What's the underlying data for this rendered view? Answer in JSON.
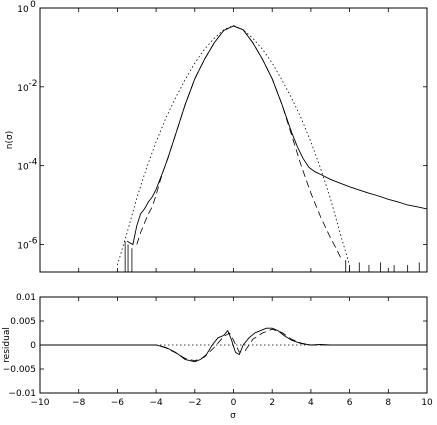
{
  "chart_data": [
    {
      "type": "line",
      "panel": "top",
      "ylabel": "n(σ)",
      "yscale": "log",
      "xlim": [
        -10,
        10
      ],
      "ylim": [
        2e-07,
        1
      ],
      "xticks": [
        -10,
        -8,
        -6,
        -4,
        -2,
        0,
        2,
        4,
        6,
        8,
        10
      ],
      "yticks": [
        {
          "value": 1e-06,
          "label": "10",
          "exp": "-6"
        },
        {
          "value": 0.0001,
          "label": "10",
          "exp": "-4"
        },
        {
          "value": 0.01,
          "label": "10",
          "exp": "-2"
        },
        {
          "value": 1,
          "label": "10",
          "exp": "0"
        }
      ],
      "grid": false,
      "series": [
        {
          "style": "solid",
          "x": [
            -5.5,
            -5.2,
            -5.0,
            -4.8,
            -4.6,
            -4.4,
            -4.2,
            -4.0,
            -3.8,
            -3.6,
            -3.4,
            -3.0,
            -2.5,
            -2.0,
            -1.5,
            -1.0,
            -0.5,
            0.0,
            0.5,
            1.0,
            1.5,
            2.0,
            2.5,
            3.0,
            3.3,
            3.6,
            3.9,
            4.2,
            4.5,
            5.0,
            5.5,
            6.0,
            6.5,
            7.0,
            7.5,
            8.0,
            8.5,
            9.0,
            9.5,
            10.0
          ],
          "y": [
            1.2e-06,
            1e-06,
            3e-06,
            6e-06,
            8e-06,
            1.2e-05,
            1.6e-05,
            2.5e-05,
            4.5e-05,
            8e-05,
            0.00015,
            0.0006,
            0.0035,
            0.016,
            0.05,
            0.13,
            0.27,
            0.35,
            0.28,
            0.13,
            0.05,
            0.016,
            0.0036,
            0.0007,
            0.0003,
            0.00015,
            9e-05,
            7e-05,
            6e-05,
            4.5e-05,
            3.6e-05,
            2.9e-05,
            2.4e-05,
            2e-05,
            1.7e-05,
            1.4e-05,
            1.2e-05,
            1e-05,
            9e-06,
            8e-06
          ]
        },
        {
          "style": "dashed",
          "x": [
            -5.0,
            -4.8,
            -4.6,
            -4.4,
            -4.2,
            -4.0,
            -3.8,
            -3.6,
            -3.4,
            -3.0,
            -2.5,
            -2.0,
            -1.5,
            -1.0,
            -0.5,
            0.0,
            0.5,
            1.0,
            1.5,
            2.0,
            2.5,
            3.0,
            3.5,
            4.0,
            4.5,
            5.0,
            5.3,
            5.6
          ],
          "y": [
            1e-06,
            2e-06,
            3.5e-06,
            6e-06,
            9e-06,
            1.8e-05,
            4e-05,
            8e-05,
            0.00015,
            0.0006,
            0.0035,
            0.016,
            0.05,
            0.13,
            0.27,
            0.35,
            0.28,
            0.13,
            0.05,
            0.016,
            0.0036,
            0.0006,
            0.0001,
            2e-05,
            5e-06,
            1.5e-06,
            8e-07,
            4e-07
          ]
        },
        {
          "style": "dotted",
          "x": [
            -6.0,
            -5.5,
            -5.0,
            -4.5,
            -4.0,
            -3.5,
            -3.0,
            -2.5,
            -2.0,
            -1.5,
            -1.0,
            -0.5,
            0.0,
            0.5,
            1.0,
            1.5,
            2.0,
            2.5,
            3.0,
            3.5,
            4.0,
            4.5,
            5.0,
            5.5,
            6.0
          ],
          "y": [
            3e-07,
            2e-06,
            1.5e-05,
            8.5e-05,
            0.0004,
            0.0016,
            0.0052,
            0.015,
            0.04,
            0.09,
            0.17,
            0.28,
            0.36,
            0.28,
            0.17,
            0.09,
            0.04,
            0.015,
            0.0052,
            0.0016,
            0.0004,
            8.5e-05,
            1.5e-05,
            2e-06,
            3e-07
          ]
        }
      ],
      "spikes": [
        {
          "x": -5.6,
          "top": 1.2e-06
        },
        {
          "x": -5.45,
          "top": 1e-06
        },
        {
          "x": -5.25,
          "top": 8e-07
        },
        {
          "x": 5.8,
          "top": 4e-07
        },
        {
          "x": 6.0,
          "top": 3e-07
        },
        {
          "x": 6.5,
          "top": 3.5e-07
        },
        {
          "x": 7.0,
          "top": 3e-07
        },
        {
          "x": 7.6,
          "top": 3.5e-07
        },
        {
          "x": 8.3,
          "top": 3e-07
        },
        {
          "x": 9.0,
          "top": 3e-07
        },
        {
          "x": 9.6,
          "top": 3.5e-07
        }
      ]
    },
    {
      "type": "line",
      "panel": "bottom",
      "xlabel": "σ",
      "ylabel": "residual",
      "xlim": [
        -10,
        10
      ],
      "ylim": [
        -0.01,
        0.01
      ],
      "xticks": [
        -10,
        -8,
        -6,
        -4,
        -2,
        0,
        2,
        4,
        6,
        8,
        10
      ],
      "yticks": [
        -0.01,
        -0.005,
        0,
        0.005,
        0.01
      ],
      "ytick_labels": [
        "−0.01",
        "−0.005",
        "0",
        "0.005",
        "0.01"
      ],
      "xtick_labels": [
        "−10",
        "−8",
        "−6",
        "−4",
        "−2",
        "0",
        "2",
        "4",
        "6",
        "8",
        "10"
      ],
      "grid": false,
      "series": [
        {
          "style": "solid",
          "x": [
            -10,
            -4.0,
            -3.5,
            -3.0,
            -2.5,
            -2.0,
            -1.7,
            -1.4,
            -1.1,
            -0.8,
            -0.5,
            -0.3,
            -0.1,
            0.1,
            0.3,
            0.5,
            0.8,
            1.1,
            1.4,
            1.7,
            2.0,
            2.3,
            2.6,
            3.0,
            3.5,
            4.0,
            4.5,
            5.0,
            10
          ],
          "y": [
            0,
            0,
            -0.0005,
            -0.0015,
            -0.003,
            -0.0035,
            -0.003,
            -0.002,
            0.0,
            0.0015,
            0.002,
            0.003,
            0.001,
            -0.0015,
            -0.002,
            0.0,
            0.0015,
            0.0025,
            0.003,
            0.0035,
            0.0035,
            0.003,
            0.002,
            0.001,
            0.0003,
            0.0,
            0.0001,
            0,
            0
          ]
        },
        {
          "style": "dashed",
          "x": [
            -10,
            -4.0,
            -3.5,
            -3.0,
            -2.5,
            -2.0,
            -1.5,
            -1.0,
            -0.5,
            -0.2,
            0.0,
            0.3,
            0.6,
            1.0,
            1.5,
            2.0,
            2.5,
            3.0,
            3.5,
            4.0,
            10
          ],
          "y": [
            0,
            0,
            -0.0006,
            -0.0016,
            -0.0028,
            -0.0033,
            -0.0025,
            -0.0005,
            0.0018,
            0.0025,
            0.001,
            -0.0015,
            -0.0012,
            0.0012,
            0.0025,
            0.0033,
            0.0026,
            0.0012,
            0.0004,
            0.0,
            0
          ]
        },
        {
          "style": "dotted",
          "x": [
            -10,
            10
          ],
          "y": [
            0,
            0
          ]
        }
      ]
    }
  ]
}
